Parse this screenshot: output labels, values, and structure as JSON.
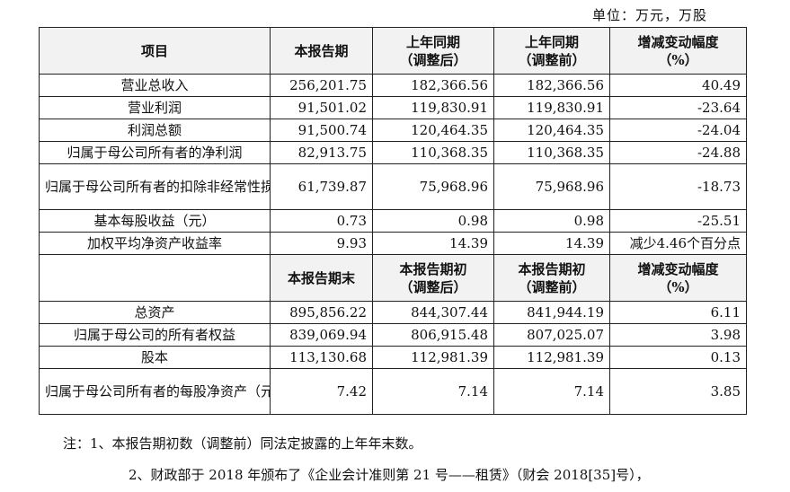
{
  "unit_label": "单位：万元，万股",
  "header1": {
    "item": "项目",
    "c1": "本报告期",
    "c2_l1": "上年同期",
    "c2_l2": "（调整后）",
    "c3_l1": "上年同期",
    "c3_l2": "（调整前）",
    "c4_l1": "增减变动幅度",
    "c4_l2": "（%）"
  },
  "rows1": [
    {
      "label": "营业总收入",
      "v1": "256,201.75",
      "v2": "182,366.56",
      "v3": "182,366.56",
      "v4": "40.49"
    },
    {
      "label": "营业利润",
      "v1": "91,501.02",
      "v2": "119,830.91",
      "v3": "119,830.91",
      "v4": "-23.64"
    },
    {
      "label": "利润总额",
      "v1": "91,500.74",
      "v2": "120,464.35",
      "v3": "120,464.35",
      "v4": "-24.04"
    },
    {
      "label": "归属于母公司所有者的净利润",
      "v1": "82,913.75",
      "v2": "110,368.35",
      "v3": "110,368.35",
      "v4": "-24.88"
    },
    {
      "label": "归属于母公司所有者的扣除非经常性损益的净利润",
      "v1": "61,739.87",
      "v2": "75,968.96",
      "v3": "75,968.96",
      "v4": "-18.73"
    },
    {
      "label": "基本每股收益（元）",
      "v1": "0.73",
      "v2": "0.98",
      "v3": "0.98",
      "v4": "-25.51"
    },
    {
      "label": "加权平均净资产收益率",
      "v1": "9.93",
      "v2": "14.39",
      "v3": "14.39",
      "v4": "减少4.46个百分点"
    }
  ],
  "header2": {
    "c1": "本报告期末",
    "c2_l1": "本报告期初",
    "c2_l2": "（调整后）",
    "c3_l1": "本报告期初",
    "c3_l2": "（调整前）",
    "c4_l1": "增减变动幅度",
    "c4_l2": "（%）"
  },
  "rows2": [
    {
      "label": "总资产",
      "v1": "895,856.22",
      "v2": "844,307.44",
      "v3": "841,944.19",
      "v4": "6.11"
    },
    {
      "label": "归属于母公司的所有者权益",
      "v1": "839,069.94",
      "v2": "806,915.48",
      "v3": "807,025.07",
      "v4": "3.98"
    },
    {
      "label": "股本",
      "v1": "113,130.68",
      "v2": "112,981.39",
      "v3": "112,981.39",
      "v4": "0.13"
    },
    {
      "label": "归属于母公司所有者的每股净资产（元）",
      "v1": "7.42",
      "v2": "7.14",
      "v3": "7.14",
      "v4": "3.85"
    }
  ],
  "note1": "注：1、本报告期初数（调整前）同法定披露的上年年末数。",
  "note2": "2、财政部于 2018 年颁布了《企业会计准则第 21 号——租赁》（财会 2018[35]号），"
}
